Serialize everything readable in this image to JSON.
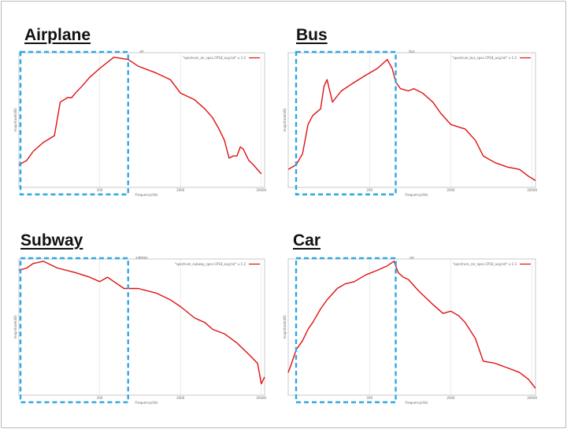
{
  "chart_data": [
    {
      "type": "line",
      "title": "Airplane",
      "plot_title": "air",
      "xlabel": "Frequency(Hz)",
      "ylabel": "magnitude(dB)",
      "x_scale": "log",
      "xlim": [
        20,
        22000
      ],
      "xticks": [
        "200",
        "2000",
        "20000"
      ],
      "legend": "\"spectrum_air_spec.CP18_avg.txt\" u 1:2",
      "legend_position": "top-right",
      "grid": true,
      "highlight_x_range": [
        20,
        450
      ],
      "ylim": [
        -60,
        0
      ],
      "series": [
        {
          "x": [
            20,
            25,
            30,
            40,
            55,
            65,
            80,
            90,
            100,
            120,
            150,
            200,
            300,
            450,
            600,
            1000,
            1500,
            2000,
            3000,
            4000,
            5000,
            6000,
            7000,
            8000,
            9000,
            10000,
            11000,
            12000,
            14000,
            16000,
            20000
          ],
          "values": [
            -50,
            -48,
            -44,
            -40,
            -37,
            -22,
            -20,
            -20,
            -18,
            -15,
            -11,
            -7,
            -2,
            -3,
            -6,
            -9,
            -12,
            -18,
            -21,
            -25,
            -29,
            -34,
            -39,
            -47,
            -46,
            -46,
            -42,
            -43,
            -48,
            -50,
            -54
          ]
        }
      ]
    },
    {
      "type": "line",
      "title": "Bus",
      "plot_title": "bus",
      "xlabel": "Frequency(Hz)",
      "ylabel": "magnitude(dB)",
      "x_scale": "log",
      "xlim": [
        20,
        22000
      ],
      "xticks": [
        "200",
        "2000",
        "20000"
      ],
      "legend": "\"spectrum_bus_spec.CP18_avg.txt\" u 1:2",
      "legend_position": "top-right",
      "grid": true,
      "highlight_x_range": [
        25,
        420
      ],
      "ylim": [
        -60,
        0
      ],
      "series": [
        {
          "x": [
            20,
            25,
            30,
            35,
            40,
            50,
            55,
            60,
            70,
            90,
            120,
            180,
            250,
            330,
            380,
            420,
            480,
            600,
            700,
            900,
            1200,
            1500,
            2000,
            3000,
            4000,
            5000,
            7000,
            10000,
            14000,
            18000,
            22000
          ],
          "values": [
            -52,
            -50,
            -45,
            -32,
            -28,
            -25,
            -15,
            -12,
            -22,
            -17,
            -14,
            -10,
            -7,
            -3,
            -7,
            -13,
            -16,
            -17,
            -16,
            -18,
            -22,
            -27,
            -32,
            -34,
            -39,
            -46,
            -49,
            -51,
            -52,
            -55,
            -57
          ]
        }
      ]
    },
    {
      "type": "line",
      "title": "Subway",
      "plot_title": "subway",
      "xlabel": "Frequency(Hz)",
      "ylabel": "magnitude(dB)",
      "x_scale": "log",
      "xlim": [
        20,
        22000
      ],
      "xticks": [
        "200",
        "2000",
        "20000"
      ],
      "legend": "\"spectrum_subway_spec.CP18_avg.txt\" u 1:2",
      "legend_position": "top-right",
      "grid": true,
      "highlight_x_range": [
        20,
        450
      ],
      "ylim": [
        -60,
        0
      ],
      "series": [
        {
          "x": [
            20,
            25,
            30,
            40,
            60,
            100,
            150,
            200,
            250,
            300,
            400,
            600,
            1000,
            1500,
            2000,
            3000,
            4000,
            5000,
            7000,
            10000,
            14000,
            18000,
            20000,
            22000
          ],
          "values": [
            -5,
            -4,
            -2,
            -1,
            -4,
            -6,
            -8,
            -10,
            -8,
            -10,
            -13,
            -13,
            -15,
            -18,
            -21,
            -26,
            -28,
            -31,
            -33,
            -37,
            -42,
            -46,
            -55,
            -52
          ]
        }
      ]
    },
    {
      "type": "line",
      "title": "Car",
      "plot_title": "car",
      "xlabel": "Frequency(Hz)",
      "ylabel": "magnitude(dB)",
      "x_scale": "log",
      "xlim": [
        20,
        22000
      ],
      "xticks": [
        "200",
        "2000",
        "20000"
      ],
      "legend": "\"spectrum_car_spec.CP18_avg.txt\" u 1:2",
      "legend_position": "top-right",
      "grid": true,
      "highlight_x_range": [
        25,
        420
      ],
      "ylim": [
        -60,
        0
      ],
      "series": [
        {
          "x": [
            20,
            22,
            25,
            30,
            35,
            40,
            50,
            60,
            80,
            100,
            130,
            180,
            250,
            330,
            400,
            450,
            520,
            600,
            800,
            1200,
            1600,
            2000,
            2500,
            3000,
            4000,
            5000,
            7000,
            10000,
            14000,
            18000,
            22000
          ],
          "values": [
            -50,
            -46,
            -40,
            -36,
            -31,
            -28,
            -22,
            -18,
            -13,
            -11,
            -10,
            -7,
            -5,
            -3,
            -1,
            -6,
            -8,
            -9,
            -14,
            -20,
            -24,
            -23,
            -25,
            -28,
            -35,
            -45,
            -46,
            -48,
            -50,
            -53,
            -57
          ]
        }
      ]
    }
  ]
}
